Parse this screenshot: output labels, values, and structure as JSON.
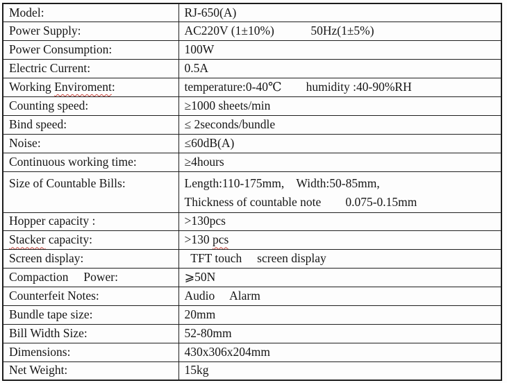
{
  "document": {
    "type": "product-specification-table",
    "product_model": "RJ-650(A)",
    "background_color": "#fdfdfd",
    "border_color": "#1c1c1c",
    "text_color": "#161616",
    "spellcheck_squiggle_color": "#c8433a"
  },
  "table": {
    "rows": [
      {
        "label": [
          {
            "t": "Model:"
          }
        ],
        "value": [
          {
            "t": "RJ-650(A)"
          }
        ]
      },
      {
        "label": [
          {
            "t": "Power Supply:"
          }
        ],
        "value": [
          {
            "t": "AC220V (1±10%)            50Hz(1±5%)"
          }
        ]
      },
      {
        "label": [
          {
            "t": "Power Consumption:"
          }
        ],
        "value": [
          {
            "t": "100W"
          }
        ]
      },
      {
        "label": [
          {
            "t": "Electric Current:"
          }
        ],
        "value": [
          {
            "t": "0.5A"
          }
        ]
      },
      {
        "label": [
          {
            "t": "Working "
          },
          {
            "t": "Enviroment",
            "misspelled": true
          },
          {
            "t": ":"
          }
        ],
        "value": [
          {
            "t": "temperature:0-40℃        humidity :40-90%RH"
          }
        ]
      },
      {
        "label": [
          {
            "t": "Counting speed:"
          }
        ],
        "value": [
          {
            "t": "≥1000 sheets/min"
          }
        ]
      },
      {
        "label": [
          {
            "t": "Bind speed:"
          }
        ],
        "value": [
          {
            "t": "≤ 2seconds/bundle"
          }
        ]
      },
      {
        "label": [
          {
            "t": "Noise:"
          }
        ],
        "value": [
          {
            "t": "≤60dB(A)"
          }
        ]
      },
      {
        "label": [
          {
            "t": "Continuous working time:"
          }
        ],
        "value": [
          {
            "t": "≥4hours"
          }
        ]
      },
      {
        "label": [
          {
            "t": "Size of Countable Bills:"
          }
        ],
        "value": [
          {
            "t": "Length:110-175mm,    Width:50-85mm,\nThickness of countable note        0.075-0.15mm"
          }
        ],
        "tall": true
      },
      {
        "label": [
          {
            "t": "Hopper capacity :"
          }
        ],
        "value": [
          {
            "t": ">130pcs"
          }
        ]
      },
      {
        "label": [
          {
            "t": "Stacker",
            "misspelled": true
          },
          {
            "t": " capacity:"
          }
        ],
        "value": [
          {
            "t": ">130 "
          },
          {
            "t": "pcs",
            "misspelled": true
          }
        ]
      },
      {
        "label": [
          {
            "t": "Screen display:"
          }
        ],
        "value": [
          {
            "t": "  TFT touch     screen display"
          }
        ]
      },
      {
        "label": [
          {
            "t": "Compaction     Power:"
          }
        ],
        "value": [
          {
            "t": "⩾50N"
          }
        ]
      },
      {
        "label": [
          {
            "t": "Counterfeit Notes:"
          }
        ],
        "value": [
          {
            "t": "Audio     Alarm"
          }
        ]
      },
      {
        "label": [
          {
            "t": "Bundle tape size:"
          }
        ],
        "value": [
          {
            "t": "20mm"
          }
        ]
      },
      {
        "label": [
          {
            "t": "Bill Width Size:"
          }
        ],
        "value": [
          {
            "t": "52-80mm"
          }
        ]
      },
      {
        "label": [
          {
            "t": "Dimensions:"
          }
        ],
        "value": [
          {
            "t": "430x306x204mm"
          }
        ]
      },
      {
        "label": [
          {
            "t": "Net Weight:"
          }
        ],
        "value": [
          {
            "t": "15kg"
          }
        ]
      }
    ]
  }
}
